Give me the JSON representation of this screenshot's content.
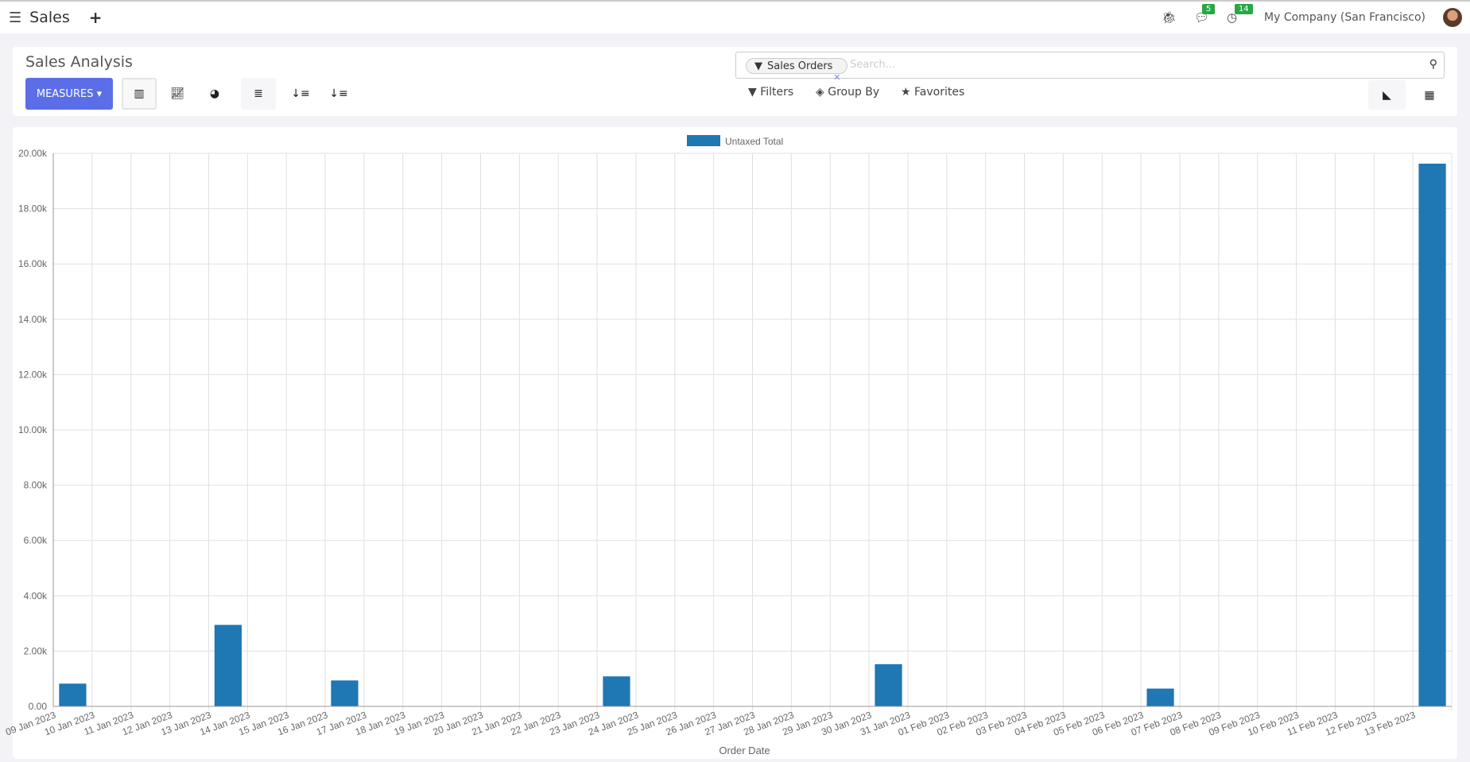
{
  "navbar": {
    "app_name": "Sales",
    "messages_count": "5",
    "activities_count": "14",
    "company": "My Company (San Francisco)"
  },
  "control_panel": {
    "title": "Sales Analysis",
    "measures_label": "MEASURES",
    "search": {
      "facet": "Sales Orders",
      "placeholder": "Search..."
    },
    "filters_label": "Filters",
    "group_by_label": "Group By",
    "favorites_label": "Favorites"
  },
  "chart_data": {
    "type": "bar",
    "xlabel": "Order Date",
    "ylabel": "",
    "ylim": [
      0,
      20000
    ],
    "yticks": [
      "0.00",
      "2.00k",
      "4.00k",
      "6.00k",
      "8.00k",
      "10.00k",
      "12.00k",
      "14.00k",
      "16.00k",
      "18.00k",
      "20.00k"
    ],
    "grid": true,
    "legend": "top",
    "color": "#1f77b4",
    "categories": [
      "09 Jan 2023",
      "10 Jan 2023",
      "11 Jan 2023",
      "12 Jan 2023",
      "13 Jan 2023",
      "14 Jan 2023",
      "15 Jan 2023",
      "16 Jan 2023",
      "17 Jan 2023",
      "18 Jan 2023",
      "19 Jan 2023",
      "20 Jan 2023",
      "21 Jan 2023",
      "22 Jan 2023",
      "23 Jan 2023",
      "24 Jan 2023",
      "25 Jan 2023",
      "26 Jan 2023",
      "27 Jan 2023",
      "28 Jan 2023",
      "29 Jan 2023",
      "30 Jan 2023",
      "31 Jan 2023",
      "01 Feb 2023",
      "02 Feb 2023",
      "03 Feb 2023",
      "04 Feb 2023",
      "05 Feb 2023",
      "06 Feb 2023",
      "07 Feb 2023",
      "08 Feb 2023",
      "09 Feb 2023",
      "10 Feb 2023",
      "11 Feb 2023",
      "12 Feb 2023",
      "13 Feb 2023"
    ],
    "series": [
      {
        "name": "Untaxed Total",
        "values": [
          823,
          0,
          0,
          0,
          2947,
          0,
          0,
          938,
          0,
          0,
          0,
          0,
          0,
          0,
          1085,
          0,
          0,
          0,
          0,
          0,
          0,
          1525,
          0,
          0,
          0,
          0,
          0,
          0,
          644,
          0,
          0,
          0,
          0,
          0,
          0,
          19627
        ]
      }
    ]
  }
}
